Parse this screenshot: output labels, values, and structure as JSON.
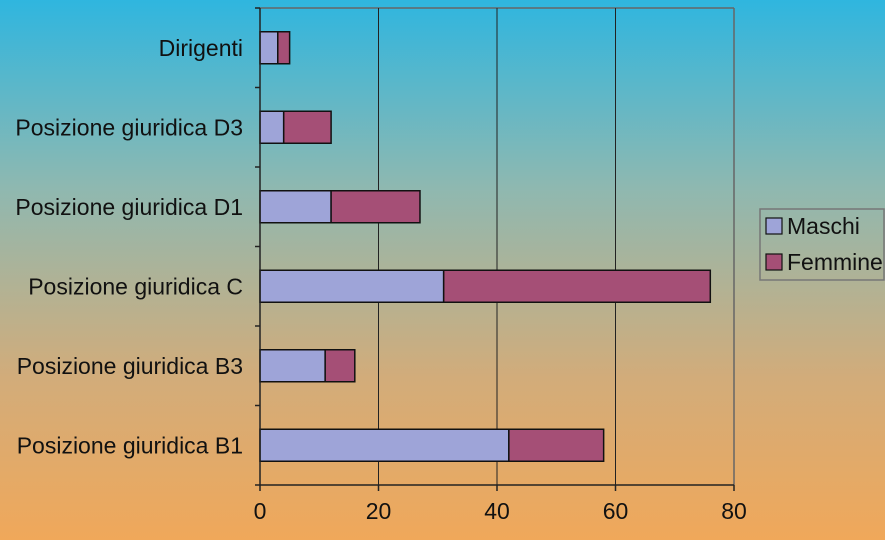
{
  "chart_data": {
    "type": "bar",
    "orientation": "horizontal",
    "stacked": true,
    "categories": [
      "Dirigenti",
      "Posizione giuridica D3",
      "Posizione giuridica D1",
      "Posizione giuridica C",
      "Posizione giuridica B3",
      "Posizione giuridica B1"
    ],
    "series": [
      {
        "name": "Maschi",
        "color": "#9ea4d8",
        "values": [
          3,
          4,
          12,
          31,
          11,
          42
        ]
      },
      {
        "name": "Femmine",
        "color": "#a54f76",
        "values": [
          2,
          8,
          15,
          45,
          5,
          16
        ]
      }
    ],
    "xlim": [
      0,
      80
    ],
    "x_ticks": [
      0,
      20,
      40,
      60,
      80
    ],
    "title": "",
    "xlabel": "",
    "ylabel": "",
    "grid": "vertical",
    "legend_position": "right"
  }
}
